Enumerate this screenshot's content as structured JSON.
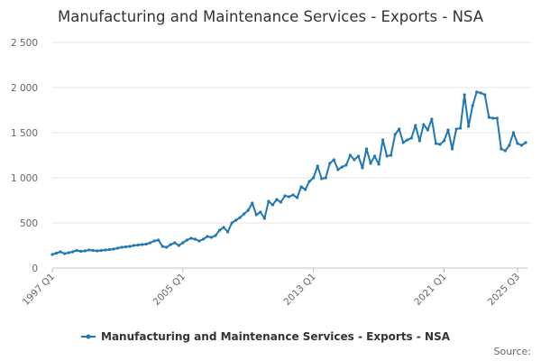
{
  "chart_data": {
    "type": "line",
    "title": "Manufacturing and Maintenance Services - Exports - NSA",
    "source": "Source:",
    "x_tick_labels": [
      "1997 Q1",
      "2005 Q1",
      "2013 Q1",
      "2021 Q1",
      "2025 Q3"
    ],
    "y_tick_labels": [
      "0",
      "500",
      "1 000",
      "1 500",
      "2 000",
      "2 500"
    ],
    "y_ticks": [
      0,
      500,
      1000,
      1500,
      2000,
      2500
    ],
    "ylim": [
      0,
      2500
    ],
    "x_start": {
      "year": 1997,
      "quarter": 1
    },
    "grid": true,
    "legend_position": "bottom",
    "colors": {
      "series": "#1f77b4"
    },
    "series": [
      {
        "name": "Manufacturing and Maintenance Services - Exports - NSA",
        "values": [
          150,
          165,
          180,
          160,
          170,
          180,
          195,
          185,
          190,
          200,
          195,
          190,
          195,
          200,
          205,
          210,
          220,
          230,
          235,
          240,
          250,
          255,
          260,
          265,
          280,
          300,
          310,
          240,
          230,
          260,
          280,
          250,
          280,
          310,
          330,
          320,
          300,
          320,
          350,
          340,
          360,
          420,
          450,
          400,
          500,
          530,
          560,
          600,
          640,
          720,
          590,
          620,
          550,
          740,
          700,
          760,
          730,
          800,
          790,
          810,
          780,
          900,
          870,
          960,
          1000,
          1130,
          990,
          1000,
          1160,
          1200,
          1090,
          1120,
          1140,
          1250,
          1200,
          1240,
          1110,
          1320,
          1160,
          1240,
          1150,
          1420,
          1240,
          1250,
          1480,
          1540,
          1390,
          1420,
          1440,
          1580,
          1410,
          1590,
          1530,
          1650,
          1380,
          1370,
          1410,
          1530,
          1320,
          1540,
          1550,
          1920,
          1570,
          1800,
          1950,
          1940,
          1920,
          1670,
          1660,
          1660,
          1320,
          1300,
          1360,
          1500,
          1380,
          1360,
          1390
        ]
      }
    ]
  }
}
